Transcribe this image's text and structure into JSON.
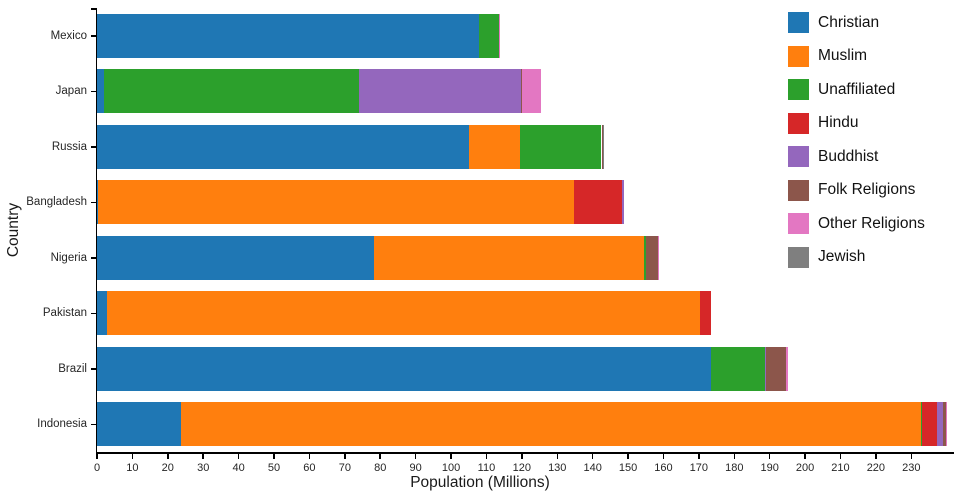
{
  "figure": {
    "background": "#ffffff"
  },
  "chart_data": {
    "type": "bar",
    "variant": "horizontal-stacked",
    "title": "",
    "xlabel": "Population (Millions)",
    "ylabel": "Country",
    "xlim": [
      0,
      241.5
    ],
    "xticks": [
      0,
      10,
      20,
      30,
      40,
      50,
      60,
      70,
      80,
      90,
      100,
      110,
      120,
      130,
      140,
      150,
      160,
      170,
      180,
      190,
      200,
      210,
      220,
      230
    ],
    "grid": false,
    "legend_position": "upper right",
    "categories": [
      "Mexico",
      "Japan",
      "Russia",
      "Bangladesh",
      "Nigeria",
      "Pakistan",
      "Brazil",
      "Indonesia"
    ],
    "series": [
      {
        "name": "Christian",
        "color": "#1f77b4",
        "values": [
          107.8,
          2.0,
          105.2,
          0.3,
          78.1,
          2.8,
          173.3,
          23.7
        ]
      },
      {
        "name": "Muslim",
        "color": "#ff7f0e",
        "values": [
          0,
          0,
          14.3,
          134.4,
          76.3,
          167.4,
          0,
          209.1
        ]
      },
      {
        "name": "Unaffiliated",
        "color": "#2ca02c",
        "values": [
          5.7,
          72.1,
          23.0,
          0.1,
          0.8,
          0,
          15.4,
          0.3
        ]
      },
      {
        "name": "Hindu",
        "color": "#d62728",
        "values": [
          0,
          0,
          0,
          13.5,
          0,
          3.3,
          0,
          4.1
        ]
      },
      {
        "name": "Buddhist",
        "color": "#9467bd",
        "values": [
          0,
          45.6,
          0,
          0.5,
          0,
          0,
          0.3,
          1.7
        ]
      },
      {
        "name": "Folk Religions",
        "color": "#8c564b",
        "values": [
          0,
          0.4,
          0.3,
          0,
          3.3,
          0,
          5.5,
          0.8
        ]
      },
      {
        "name": "Other Religions",
        "color": "#e377c2",
        "values": [
          0.1,
          5.2,
          0,
          0,
          0.2,
          0,
          0.6,
          0.3
        ]
      },
      {
        "name": "Jewish",
        "color": "#7f7f7f",
        "values": [
          0,
          0,
          0.3,
          0,
          0,
          0,
          0,
          0
        ]
      }
    ]
  }
}
